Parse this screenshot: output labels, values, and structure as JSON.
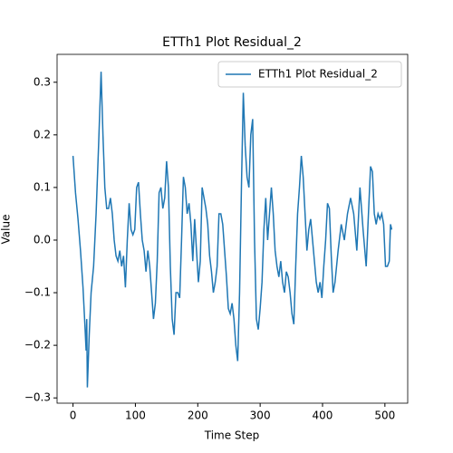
{
  "chart_data": {
    "type": "line",
    "title": "ETTh1 Plot Residual_2",
    "xlabel": "Time Step",
    "ylabel": "Value",
    "x": [
      0,
      4,
      8,
      12,
      16,
      19,
      21,
      22,
      23,
      26,
      29,
      33,
      37,
      41,
      45,
      48,
      51,
      54,
      57,
      60,
      63,
      66,
      69,
      72,
      75,
      78,
      81,
      84,
      87,
      90,
      93,
      96,
      99,
      102,
      105,
      108,
      111,
      114,
      117,
      120,
      123,
      126,
      129,
      132,
      135,
      138,
      141,
      144,
      147,
      150,
      153,
      156,
      159,
      162,
      165,
      168,
      171,
      174,
      177,
      180,
      183,
      186,
      189,
      192,
      195,
      198,
      201,
      204,
      207,
      210,
      213,
      216,
      219,
      222,
      225,
      228,
      231,
      234,
      237,
      240,
      243,
      246,
      249,
      252,
      255,
      258,
      261,
      264,
      267,
      270,
      273,
      276,
      279,
      282,
      285,
      288,
      291,
      294,
      297,
      300,
      303,
      306,
      309,
      312,
      315,
      318,
      321,
      324,
      327,
      330,
      333,
      336,
      339,
      342,
      345,
      348,
      351,
      354,
      357,
      360,
      363,
      366,
      369,
      372,
      375,
      378,
      381,
      384,
      387,
      390,
      393,
      396,
      399,
      402,
      405,
      408,
      411,
      414,
      417,
      420,
      425,
      430,
      435,
      440,
      445,
      450,
      455,
      460,
      465,
      470,
      474,
      477,
      480,
      483,
      486,
      489,
      492,
      495,
      498,
      501,
      504,
      507,
      509,
      511
    ],
    "series": [
      {
        "name": "ETTh1 Plot Residual_2",
        "color": "#1f77b4",
        "values": [
          0.16,
          0.09,
          0.04,
          -0.02,
          -0.09,
          -0.16,
          -0.21,
          -0.15,
          -0.28,
          -0.18,
          -0.1,
          -0.05,
          0.05,
          0.18,
          0.32,
          0.2,
          0.1,
          0.06,
          0.06,
          0.08,
          0.05,
          0.0,
          -0.03,
          -0.04,
          -0.02,
          -0.05,
          -0.03,
          -0.09,
          0.0,
          0.07,
          0.02,
          0.01,
          0.02,
          0.1,
          0.11,
          0.05,
          0.0,
          -0.02,
          -0.06,
          -0.02,
          -0.05,
          -0.1,
          -0.15,
          -0.12,
          -0.04,
          0.09,
          0.1,
          0.06,
          0.08,
          0.15,
          0.1,
          -0.05,
          -0.15,
          -0.18,
          -0.1,
          -0.1,
          -0.11,
          0.0,
          0.12,
          0.1,
          0.05,
          0.07,
          0.03,
          -0.04,
          0.04,
          -0.02,
          -0.08,
          -0.04,
          0.1,
          0.08,
          0.06,
          0.03,
          -0.03,
          -0.06,
          -0.1,
          -0.08,
          -0.05,
          0.05,
          0.05,
          0.03,
          -0.02,
          -0.07,
          -0.13,
          -0.14,
          -0.12,
          -0.15,
          -0.2,
          -0.23,
          -0.1,
          0.1,
          0.28,
          0.18,
          0.12,
          0.1,
          0.2,
          0.23,
          0.0,
          -0.15,
          -0.17,
          -0.13,
          -0.08,
          0.02,
          0.08,
          0.0,
          0.05,
          0.1,
          0.05,
          -0.02,
          -0.05,
          -0.07,
          -0.04,
          -0.08,
          -0.1,
          -0.06,
          -0.07,
          -0.1,
          -0.14,
          -0.16,
          -0.05,
          0.05,
          0.1,
          0.16,
          0.12,
          0.05,
          -0.02,
          0.02,
          0.04,
          0.0,
          -0.04,
          -0.08,
          -0.1,
          -0.08,
          -0.11,
          -0.05,
          0.0,
          0.07,
          0.06,
          -0.03,
          -0.1,
          -0.08,
          -0.02,
          0.03,
          0.0,
          0.05,
          0.08,
          0.05,
          -0.02,
          0.1,
          0.02,
          -0.05,
          0.06,
          0.14,
          0.13,
          0.05,
          0.03,
          0.05,
          0.04,
          0.05,
          0.03,
          -0.05,
          -0.05,
          -0.04,
          0.03,
          0.02
        ]
      }
    ],
    "xlim": [
      -25.55,
      536.55
    ],
    "xticks": [
      0,
      100,
      200,
      300,
      400,
      500
    ],
    "ylim": [
      -0.31,
      0.353
    ],
    "yticks": [
      {
        "value": -0.3,
        "label": "−0.3"
      },
      {
        "value": -0.2,
        "label": "−0.2"
      },
      {
        "value": -0.1,
        "label": "−0.1"
      },
      {
        "value": 0,
        "label": "0.0"
      },
      0.1,
      0.2,
      0.3
    ],
    "legend": "upper right",
    "grid": false
  }
}
